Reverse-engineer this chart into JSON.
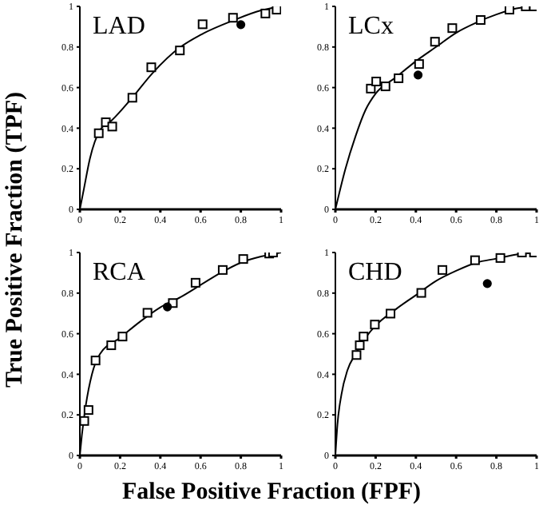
{
  "chart_data": [
    {
      "type": "scatter",
      "title": "LAD",
      "xlabel": "False Positive Fraction (FPF)",
      "ylabel": "True Positive Fraction (TPF)",
      "xlim": [
        0,
        1
      ],
      "ylim": [
        0,
        1
      ],
      "xticks": [
        0,
        0.2,
        0.4,
        0.6,
        0.8,
        1
      ],
      "yticks": [
        0,
        0.2,
        0.4,
        0.6,
        0.8,
        1
      ],
      "series": [
        {
          "type": "line",
          "marker": "none",
          "color": "#000000",
          "x": [
            0,
            0.02,
            0.05,
            0.1,
            0.16,
            0.26,
            0.36,
            0.5,
            0.6,
            0.76,
            0.9,
            1
          ],
          "values": [
            0,
            0.1,
            0.25,
            0.39,
            0.44,
            0.55,
            0.67,
            0.8,
            0.86,
            0.93,
            0.98,
            1
          ]
        },
        {
          "type": "scatter",
          "marker": "square",
          "color": "#000000",
          "x": [
            0.094,
            0.129,
            0.161,
            0.261,
            0.355,
            0.497,
            0.61,
            0.761,
            0.922,
            0.978
          ],
          "values": [
            0.375,
            0.429,
            0.408,
            0.55,
            0.7,
            0.783,
            0.912,
            0.944,
            0.965,
            0.984
          ]
        },
        {
          "type": "scatter",
          "marker": "circle",
          "color": "#000000",
          "x": [
            0.8
          ],
          "values": [
            0.91
          ]
        }
      ]
    },
    {
      "type": "scatter",
      "title": "LCx",
      "xlim": [
        0,
        1
      ],
      "ylim": [
        0,
        1
      ],
      "xticks": [
        0,
        0.2,
        0.4,
        0.6,
        0.8,
        1
      ],
      "yticks": [
        0,
        0.2,
        0.4,
        0.6,
        0.8,
        1
      ],
      "series": [
        {
          "type": "line",
          "marker": "none",
          "color": "#000000",
          "x": [
            0,
            0.05,
            0.1,
            0.15,
            0.2,
            0.3,
            0.4,
            0.5,
            0.6,
            0.7,
            0.8,
            0.9,
            1
          ],
          "values": [
            0,
            0.2,
            0.36,
            0.49,
            0.57,
            0.65,
            0.73,
            0.8,
            0.87,
            0.92,
            0.96,
            0.99,
            1
          ]
        },
        {
          "type": "scatter",
          "marker": "square",
          "color": "#000000",
          "x": [
            0.176,
            0.203,
            0.249,
            0.314,
            0.416,
            0.495,
            0.581,
            0.722,
            0.865,
            0.946,
            0.986
          ],
          "values": [
            0.595,
            0.63,
            0.606,
            0.646,
            0.716,
            0.826,
            0.893,
            0.933,
            0.984,
            1,
            1
          ]
        },
        {
          "type": "scatter",
          "marker": "circle",
          "color": "#000000",
          "x": [
            0.411
          ],
          "values": [
            0.662
          ]
        }
      ]
    },
    {
      "type": "scatter",
      "title": "RCA",
      "xlim": [
        0,
        1
      ],
      "ylim": [
        0,
        1
      ],
      "xticks": [
        0,
        0.2,
        0.4,
        0.6,
        0.8,
        1
      ],
      "yticks": [
        0,
        0.2,
        0.4,
        0.6,
        0.8,
        1
      ],
      "series": [
        {
          "type": "line",
          "marker": "none",
          "color": "#000000",
          "x": [
            0,
            0.01,
            0.03,
            0.06,
            0.1,
            0.2,
            0.3,
            0.4,
            0.5,
            0.6,
            0.7,
            0.8,
            0.9,
            1
          ],
          "values": [
            0,
            0.1,
            0.25,
            0.4,
            0.5,
            0.58,
            0.66,
            0.73,
            0.78,
            0.84,
            0.9,
            0.95,
            0.98,
            1
          ]
        },
        {
          "type": "scatter",
          "marker": "square",
          "color": "#000000",
          "x": [
            0.022,
            0.043,
            0.078,
            0.156,
            0.212,
            0.336,
            0.462,
            0.575,
            0.71,
            0.812,
            0.941,
            0.96
          ],
          "values": [
            0.17,
            0.224,
            0.468,
            0.543,
            0.586,
            0.703,
            0.751,
            0.851,
            0.914,
            0.968,
            0.995,
            1
          ]
        },
        {
          "type": "scatter",
          "marker": "circle",
          "color": "#000000",
          "x": [
            0.435
          ],
          "values": [
            0.732
          ]
        }
      ]
    },
    {
      "type": "scatter",
      "title": "CHD",
      "xlim": [
        0,
        1
      ],
      "ylim": [
        0,
        1
      ],
      "xticks": [
        0,
        0.2,
        0.4,
        0.6,
        0.8,
        1
      ],
      "yticks": [
        0,
        0.2,
        0.4,
        0.6,
        0.8,
        1
      ],
      "series": [
        {
          "type": "line",
          "marker": "none",
          "color": "#000000",
          "x": [
            0,
            0.01,
            0.03,
            0.06,
            0.1,
            0.15,
            0.2,
            0.3,
            0.4,
            0.5,
            0.6,
            0.7,
            0.8,
            0.9,
            1
          ],
          "values": [
            0,
            0.15,
            0.3,
            0.42,
            0.5,
            0.58,
            0.64,
            0.72,
            0.79,
            0.86,
            0.91,
            0.95,
            0.97,
            0.99,
            1
          ]
        },
        {
          "type": "scatter",
          "marker": "square",
          "color": "#000000",
          "x": [
            0.105,
            0.121,
            0.14,
            0.196,
            0.274,
            0.427,
            0.532,
            0.694,
            0.82,
            0.927,
            0.987
          ],
          "values": [
            0.495,
            0.543,
            0.586,
            0.645,
            0.699,
            0.801,
            0.914,
            0.962,
            0.973,
            1,
            1
          ]
        },
        {
          "type": "scatter",
          "marker": "circle",
          "color": "#000000",
          "x": [
            0.755
          ],
          "values": [
            0.847
          ]
        }
      ]
    }
  ]
}
